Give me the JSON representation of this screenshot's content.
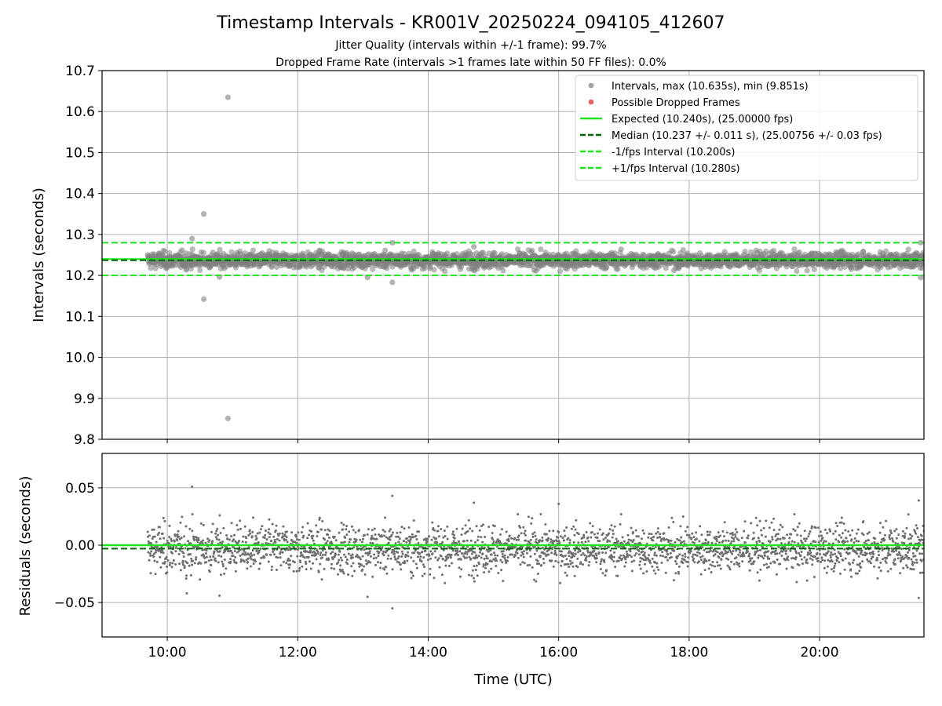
{
  "chart_data": {
    "type": "scatter",
    "title": "Timestamp Intervals - KR001V_20250224_094105_412607",
    "subtitles": [
      "Jitter Quality (intervals within +/-1 frame): 99.7%",
      "Dropped Frame Rate (intervals >1 frames late within 50 FF files): 0.0%"
    ],
    "xlabel": "Time (UTC)",
    "x_range_hours": [
      9.0,
      21.6
    ],
    "x_tick_labels": [
      "10:00",
      "12:00",
      "14:00",
      "16:00",
      "18:00",
      "20:00"
    ],
    "x_tick_values_hours": [
      10,
      12,
      14,
      16,
      18,
      20
    ],
    "grid": true,
    "legend_position": "top-right",
    "colors": {
      "intervals": "#808080",
      "dropped": "#f06060",
      "expected": "#1fe51f",
      "median": "#006400",
      "bounds": "#1fe51f",
      "residuals": "#6e6e6e"
    },
    "intervals_panel": {
      "ylabel": "Intervals (seconds)",
      "ylim": [
        9.8,
        10.7
      ],
      "y_ticks": [
        9.8,
        9.9,
        10.0,
        10.1,
        10.2,
        10.3,
        10.4,
        10.5,
        10.6,
        10.7
      ],
      "y_tick_labels": [
        "9.8",
        "9.9",
        "10.0",
        "10.1",
        "10.2",
        "10.3",
        "10.4",
        "10.5",
        "10.6",
        "10.7"
      ],
      "expected": 10.24,
      "median": 10.237,
      "lower_bound": 10.2,
      "upper_bound": 10.28,
      "outliers": [
        {
          "x": 10.93,
          "y": 10.635
        },
        {
          "x": 10.93,
          "y": 9.851
        },
        {
          "x": 10.56,
          "y": 10.35
        },
        {
          "x": 10.56,
          "y": 10.142
        },
        {
          "x": 10.38,
          "y": 10.29
        },
        {
          "x": 13.45,
          "y": 10.183
        },
        {
          "x": 13.45,
          "y": 10.28
        },
        {
          "x": 13.07,
          "y": 10.195
        },
        {
          "x": 10.8,
          "y": 10.196
        },
        {
          "x": 14.7,
          "y": 10.27
        },
        {
          "x": 21.55,
          "y": 10.195
        },
        {
          "x": 21.55,
          "y": 10.28
        }
      ]
    },
    "residuals_panel": {
      "ylabel": "Residuals (seconds)",
      "ylim": [
        -0.08,
        0.08
      ],
      "y_ticks": [
        -0.05,
        0.0,
        0.05
      ],
      "y_tick_labels": [
        "−0.05",
        "0.00",
        "0.05"
      ],
      "expected": 0.0,
      "median": -0.003,
      "outliers": [
        {
          "x": 10.38,
          "y": 0.051
        },
        {
          "x": 13.45,
          "y": -0.055
        },
        {
          "x": 13.45,
          "y": 0.043
        },
        {
          "x": 13.07,
          "y": -0.045
        },
        {
          "x": 10.8,
          "y": -0.044
        },
        {
          "x": 14.7,
          "y": 0.037
        },
        {
          "x": 21.52,
          "y": -0.046
        },
        {
          "x": 21.52,
          "y": 0.039
        },
        {
          "x": 16.0,
          "y": 0.036
        },
        {
          "x": 10.3,
          "y": -0.042
        }
      ]
    },
    "legend": [
      {
        "label": "Intervals, max (10.635s), min (9.851s)",
        "marker": "dot",
        "color": "#a0a0a0"
      },
      {
        "label": "Possible Dropped Frames",
        "marker": "dot",
        "color": "#f06060"
      },
      {
        "label": "Expected (10.240s), (25.00000 fps)",
        "marker": "line",
        "color": "#1fe51f"
      },
      {
        "label": "Median (10.237 +/- 0.011 s), (25.00756 +/- 0.03 fps)",
        "marker": "dash",
        "color": "#006400"
      },
      {
        "label": "-1/fps Interval (10.200s)",
        "marker": "dash",
        "color": "#1fe51f"
      },
      {
        "label": "+1/fps Interval (10.280s)",
        "marker": "dash",
        "color": "#1fe51f"
      }
    ]
  }
}
